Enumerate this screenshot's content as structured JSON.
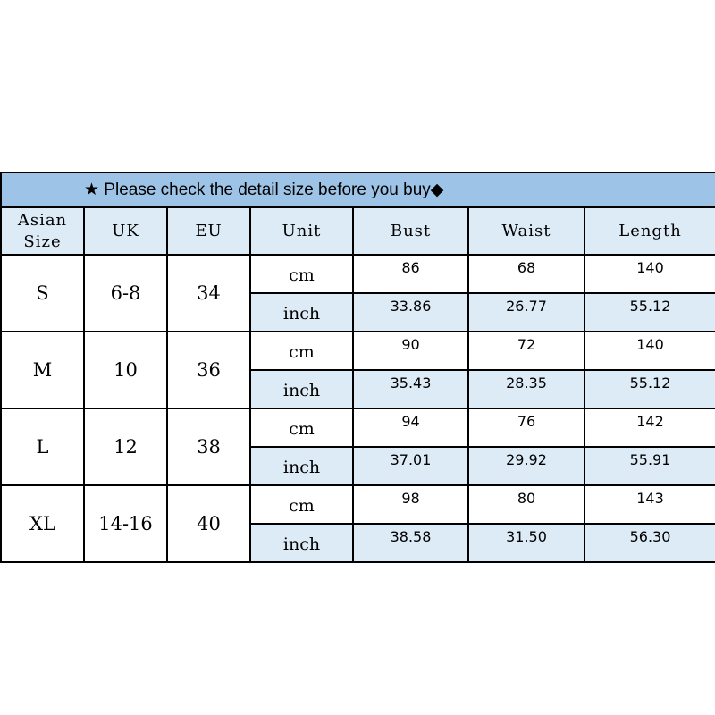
{
  "title": "★ Please check the detail size before you buy◆",
  "headers": [
    "Asian Size",
    "UK",
    "EU",
    "Unit",
    "Bust",
    "Waist",
    "Length"
  ],
  "rows": [
    {
      "asian": "S",
      "uk": "6-8",
      "eu": "34",
      "cm": {
        "unit": "cm",
        "bust": "86",
        "waist": "68",
        "length": "140"
      },
      "inch": {
        "unit": "inch",
        "bust": "33.86",
        "waist": "26.77",
        "length": "55.12"
      }
    },
    {
      "asian": "M",
      "uk": "10",
      "eu": "36",
      "cm": {
        "unit": "cm",
        "bust": "90",
        "waist": "72",
        "length": "140"
      },
      "inch": {
        "unit": "inch",
        "bust": "35.43",
        "waist": "28.35",
        "length": "55.12"
      }
    },
    {
      "asian": "L",
      "uk": "12",
      "eu": "38",
      "cm": {
        "unit": "cm",
        "bust": "94",
        "waist": "76",
        "length": "142"
      },
      "inch": {
        "unit": "inch",
        "bust": "37.01",
        "waist": "29.92",
        "length": "55.91"
      }
    },
    {
      "asian": "XL",
      "uk": "14-16",
      "eu": "40",
      "cm": {
        "unit": "cm",
        "bust": "98",
        "waist": "80",
        "length": "143"
      },
      "inch": {
        "unit": "inch",
        "bust": "38.58",
        "waist": "31.50",
        "length": "56.30"
      }
    }
  ],
  "colors": {
    "title_bg": "#9dc3e6",
    "header_bg": "#ddebf7"
  }
}
